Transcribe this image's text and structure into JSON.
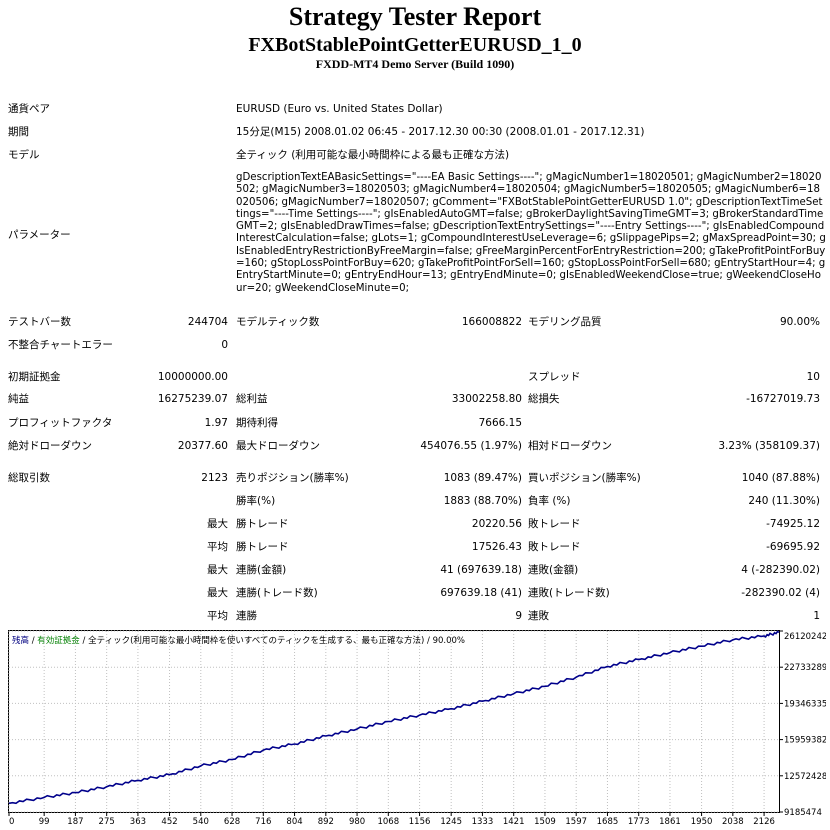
{
  "header": {
    "title": "Strategy Tester Report",
    "ea_name": "FXBotStablePointGetterEURUSD_1_0",
    "server": "FXDD-MT4 Demo Server (Build 1090)"
  },
  "info": {
    "symbol_label": "通貨ペア",
    "symbol_value": "EURUSD (Euro vs. United States Dollar)",
    "period_label": "期間",
    "period_value": "15分足(M15) 2008.01.02 06:45 - 2017.12.30 00:30 (2008.01.01 - 2017.12.31)",
    "model_label": "モデル",
    "model_value": "全ティック (利用可能な最小時間枠による最も正確な方法)",
    "params_label": "パラメーター",
    "params_value": "gDescriptionTextEABasicSettings=\"----EA Basic Settings----\"; gMagicNumber1=18020501; gMagicNumber2=18020502; gMagicNumber3=18020503; gMagicNumber4=18020504; gMagicNumber5=18020505; gMagicNumber6=18020506; gMagicNumber7=18020507; gComment=\"FXBotStablePointGetterEURUSD 1.0\"; gDescriptionTextTimeSettings=\"----Time Settings----\"; gIsEnabledAutoGMT=false; gBrokerDaylightSavingTimeGMT=3; gBrokerStandardTimeGMT=2; gIsEnabledDrawTimes=false; gDescriptionTextEntrySettings=\"----Entry Settings----\"; gIsEnabledCompoundInterestCalculation=false; gLots=1; gCompoundInterestUseLeverage=6; gSlippagePips=2; gMaxSpreadPoint=30; gIsEnabledEntryRestrictionByFreeMargin=false; gFreeMarginPercentForEntryRestriction=200; gTakeProfitPointForBuy=160; gStopLossPointForBuy=620; gTakeProfitPointForSell=160; gStopLossPointForSell=680; gEntryStartHour=4; gEntryStartMinute=0; gEntryEndHour=13; gEntryEndMinute=0; gIsEnabledWeekendClose=true; gWeekendCloseHour=20; gWeekendCloseMinute=0;"
  },
  "stats": {
    "bars_label": "テストバー数",
    "bars_value": "244704",
    "ticks_label": "モデルティック数",
    "ticks_value": "166008822",
    "quality_label": "モデリング品質",
    "quality_value": "90.00%",
    "mismatch_label": "不整合チャートエラー",
    "mismatch_value": "0",
    "deposit_label": "初期証拠金",
    "deposit_value": "10000000.00",
    "spread_label": "スプレッド",
    "spread_value": "10",
    "netprofit_label": "純益",
    "netprofit_value": "16275239.07",
    "grossprofit_label": "総利益",
    "grossprofit_value": "33002258.80",
    "grossloss_label": "総損失",
    "grossloss_value": "-16727019.73",
    "pf_label": "プロフィットファクタ",
    "pf_value": "1.97",
    "expected_label": "期待利得",
    "expected_value": "7666.15",
    "absdd_label": "絶対ドローダウン",
    "absdd_value": "20377.60",
    "maxdd_label": "最大ドローダウン",
    "maxdd_value": "454076.55 (1.97%)",
    "reldd_label": "相対ドローダウン",
    "reldd_value": "3.23% (358109.37)"
  },
  "trades": {
    "total_label": "総取引数",
    "total_value": "2123",
    "short_label": "売りポジション(勝率%)",
    "short_value": "1083 (89.47%)",
    "long_label": "買いポジション(勝率%)",
    "long_value": "1040 (87.88%)",
    "win_label": "勝率(%)",
    "win_value": "1883 (88.70%)",
    "loss_label": "負率 (%)",
    "loss_value": "240 (11.30%)",
    "max_label": "最大",
    "avg_label": "平均",
    "largest_win_label": "勝トレード",
    "largest_win_value": "20220.56",
    "largest_loss_label": "敗トレード",
    "largest_loss_value": "-74925.12",
    "avg_win_label": "勝トレード",
    "avg_win_value": "17526.43",
    "avg_loss_label": "敗トレード",
    "avg_loss_value": "-69695.92",
    "cons_wins_label": "連勝(金額)",
    "cons_wins_value": "41 (697639.18)",
    "cons_losses_label": "連敗(金額)",
    "cons_losses_value": "4 (-282390.02)",
    "cons_profit_label": "連勝(トレード数)",
    "cons_profit_value": "697639.18 (41)",
    "cons_loss_label": "連敗(トレード数)",
    "cons_loss_value": "-282390.02 (4)",
    "avg_cons_wins_label": "連勝",
    "avg_cons_wins_value": "9",
    "avg_cons_losses_label": "連敗",
    "avg_cons_losses_value": "1"
  },
  "chart_data": {
    "type": "line",
    "legend": {
      "balance": "残高",
      "sep1": " / ",
      "equity": "有効証拠金",
      "sep2": " / ",
      "model_text": "全ティック(利用可能な最小時間枠を使いすべてのティックを生成する、最も正確な方法)",
      "sep3": " / ",
      "quality": "90.00%"
    },
    "x_ticks": [
      "0",
      "99",
      "187",
      "275",
      "363",
      "452",
      "540",
      "628",
      "716",
      "804",
      "892",
      "980",
      "1068",
      "1156",
      "1245",
      "1333",
      "1421",
      "1509",
      "1597",
      "1685",
      "1773",
      "1861",
      "1950",
      "2038",
      "2126"
    ],
    "x_range": [
      0,
      2168
    ],
    "y_ticks": [
      "26120242",
      "22733289",
      "19346335",
      "15959382",
      "12572428",
      "9185474"
    ],
    "y_range": [
      9185474,
      26120242
    ],
    "series": [
      {
        "name": "残高",
        "color": "#00008b",
        "x": [
          0,
          99,
          187,
          275,
          363,
          452,
          540,
          628,
          716,
          804,
          892,
          980,
          1068,
          1156,
          1245,
          1333,
          1421,
          1509,
          1597,
          1685,
          1773,
          1861,
          1950,
          2038,
          2126,
          2168
        ],
        "values": [
          10000000,
          10550000,
          11000000,
          11550000,
          12150000,
          12680000,
          13500000,
          14100000,
          14980000,
          15550000,
          16300000,
          16950000,
          17650000,
          18250000,
          18850000,
          19550000,
          20250000,
          20950000,
          21800000,
          22800000,
          23450000,
          24100000,
          24700000,
          25300000,
          25650000,
          26000000
        ]
      }
    ],
    "colors": {
      "balance": "#000080",
      "equity": "#008000",
      "grid": "#c0c0c0",
      "frame": "#000000"
    }
  }
}
